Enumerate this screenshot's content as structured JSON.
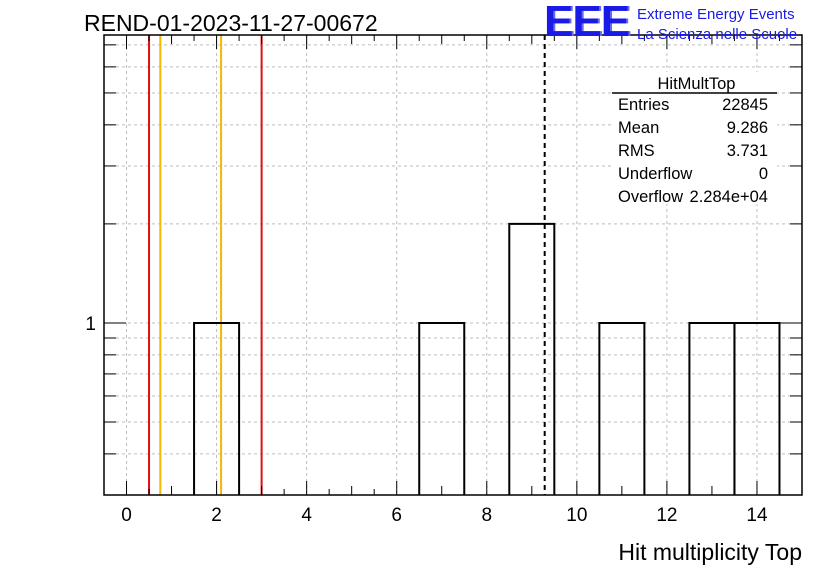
{
  "run_title": "REND-01-2023-11-27-00672",
  "logo": {
    "mark": "EEE",
    "line1": "Extreme Energy Events",
    "line2": "La Scienza nelle Scuole",
    "color": "#1a1ae6"
  },
  "chart_data": {
    "type": "bar",
    "title": "",
    "xlabel": "Hit multiplicity Top",
    "ylabel": "",
    "xlim": [
      -0.5,
      15
    ],
    "ylim": [
      0.3,
      7.5
    ],
    "yscale": "log",
    "grid": true,
    "x_ticks": [
      0,
      2,
      4,
      6,
      8,
      10,
      12,
      14
    ],
    "y_tick_labels": [
      {
        "value": 1,
        "label": "1"
      }
    ],
    "bins": [
      {
        "x_low": 1.5,
        "x_high": 2.5,
        "count": 1
      },
      {
        "x_low": 6.5,
        "x_high": 7.5,
        "count": 1
      },
      {
        "x_low": 8.5,
        "x_high": 9.5,
        "count": 2
      },
      {
        "x_low": 10.5,
        "x_high": 11.5,
        "count": 1
      },
      {
        "x_low": 12.5,
        "x_high": 13.5,
        "count": 1
      },
      {
        "x_low": 13.5,
        "x_high": 14.5,
        "count": 1
      }
    ],
    "vertical_lines": [
      {
        "x": 0.5,
        "color": "#dd1111",
        "style": "solid"
      },
      {
        "x": 0.75,
        "color": "#f5b800",
        "style": "solid"
      },
      {
        "x": 2.1,
        "color": "#f5b800",
        "style": "solid"
      },
      {
        "x": 3.0,
        "color": "#dd1111",
        "style": "solid"
      },
      {
        "x": 9.286,
        "color": "#000000",
        "style": "dashed"
      }
    ],
    "stats_box": {
      "title": "HitMultTop",
      "rows": [
        {
          "label": "Entries",
          "value": "22845"
        },
        {
          "label": "Mean",
          "value": "9.286"
        },
        {
          "label": "RMS",
          "value": "3.731"
        },
        {
          "label": "Underflow",
          "value": "0"
        },
        {
          "label": "Overflow",
          "value": "2.284e+04"
        }
      ]
    }
  }
}
